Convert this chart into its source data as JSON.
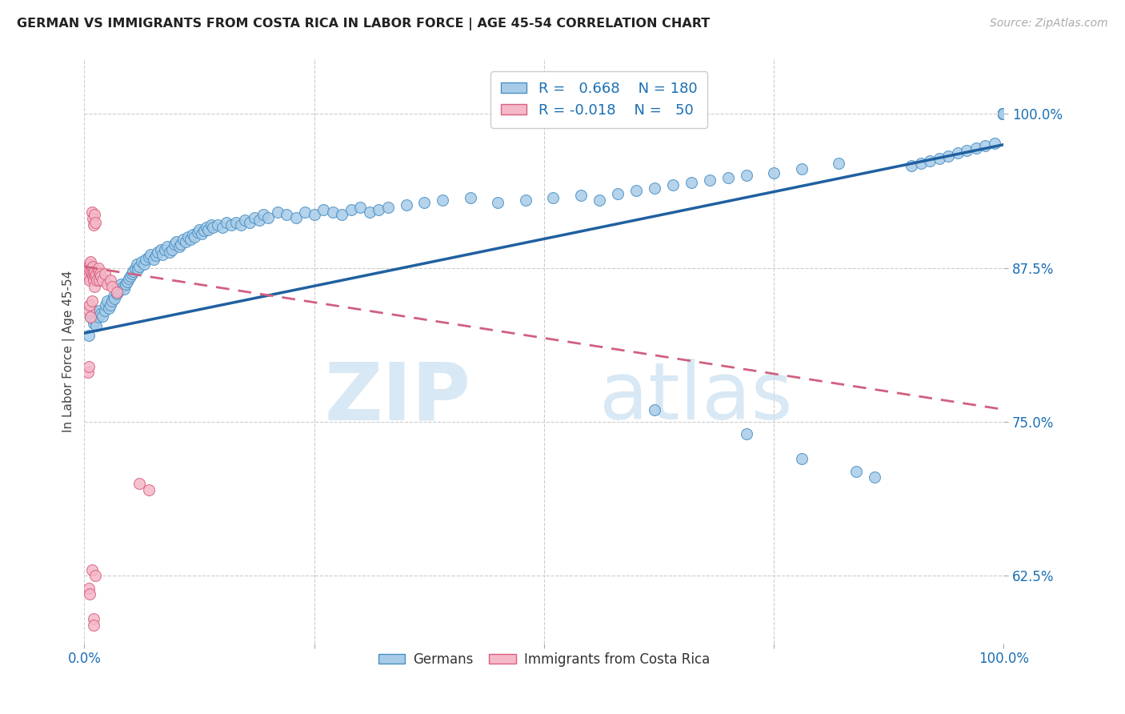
{
  "title": "GERMAN VS IMMIGRANTS FROM COSTA RICA IN LABOR FORCE | AGE 45-54 CORRELATION CHART",
  "source": "Source: ZipAtlas.com",
  "ylabel": "In Labor Force | Age 45-54",
  "xlim": [
    0.0,
    1.0
  ],
  "ylim": [
    0.57,
    1.045
  ],
  "x_ticks": [
    0.0,
    0.25,
    0.5,
    0.75,
    1.0
  ],
  "x_tick_labels": [
    "0.0%",
    "",
    "",
    "",
    "100.0%"
  ],
  "y_tick_labels": [
    "62.5%",
    "75.0%",
    "87.5%",
    "100.0%"
  ],
  "y_ticks": [
    0.625,
    0.75,
    0.875,
    1.0
  ],
  "blue_color": "#a8cce8",
  "blue_edge": "#4a90c4",
  "pink_color": "#f5b8c8",
  "pink_edge": "#d96080",
  "trendline_blue": "#2060a0",
  "trendline_pink": "#d06080",
  "legend_label1": "Germans",
  "legend_label2": "Immigrants from Costa Rica",
  "blue_scatter_x": [
    0.005,
    0.007,
    0.008,
    0.009,
    0.01,
    0.012,
    0.013,
    0.015,
    0.016,
    0.018,
    0.02,
    0.022,
    0.023,
    0.025,
    0.027,
    0.028,
    0.03,
    0.032,
    0.033,
    0.035,
    0.037,
    0.038,
    0.04,
    0.042,
    0.043,
    0.045,
    0.047,
    0.048,
    0.05,
    0.052,
    0.053,
    0.055,
    0.057,
    0.058,
    0.06,
    0.062,
    0.065,
    0.067,
    0.07,
    0.072,
    0.075,
    0.078,
    0.08,
    0.083,
    0.085,
    0.088,
    0.09,
    0.093,
    0.095,
    0.098,
    0.1,
    0.103,
    0.105,
    0.108,
    0.11,
    0.113,
    0.115,
    0.118,
    0.12,
    0.123,
    0.125,
    0.128,
    0.13,
    0.133,
    0.135,
    0.138,
    0.14,
    0.145,
    0.15,
    0.155,
    0.16,
    0.165,
    0.17,
    0.175,
    0.18,
    0.185,
    0.19,
    0.195,
    0.2,
    0.21,
    0.22,
    0.23,
    0.24,
    0.25,
    0.26,
    0.27,
    0.28,
    0.29,
    0.3,
    0.31,
    0.32,
    0.33,
    0.35,
    0.37,
    0.39,
    0.42,
    0.45,
    0.48,
    0.51,
    0.54,
    0.56,
    0.58,
    0.6,
    0.62,
    0.64,
    0.66,
    0.68,
    0.7,
    0.72,
    0.75,
    0.78,
    0.82,
    0.9,
    0.91,
    0.92,
    0.93,
    0.94,
    0.95,
    0.96,
    0.97,
    0.98,
    0.99,
    1.0,
    1.0,
    1.0,
    1.0,
    1.0,
    1.0,
    1.0,
    1.0,
    1.0,
    1.0,
    1.0,
    1.0,
    1.0,
    1.0,
    1.0,
    1.0,
    1.0,
    1.0,
    1.0,
    1.0,
    1.0,
    1.0,
    1.0,
    1.0,
    1.0,
    1.0,
    1.0,
    1.0,
    1.0,
    1.0,
    1.0,
    1.0,
    1.0,
    1.0,
    1.0,
    1.0,
    1.0,
    1.0,
    1.0,
    1.0,
    1.0,
    1.0,
    1.0,
    1.0,
    1.0,
    1.0,
    1.0,
    1.0,
    1.0,
    1.0,
    0.62,
    0.72,
    0.78,
    0.84,
    0.86
  ],
  "blue_scatter_y": [
    0.82,
    0.835,
    0.838,
    0.84,
    0.83,
    0.832,
    0.828,
    0.835,
    0.84,
    0.838,
    0.836,
    0.84,
    0.845,
    0.848,
    0.842,
    0.845,
    0.848,
    0.852,
    0.85,
    0.854,
    0.856,
    0.858,
    0.862,
    0.86,
    0.858,
    0.862,
    0.864,
    0.866,
    0.868,
    0.87,
    0.872,
    0.875,
    0.878,
    0.874,
    0.876,
    0.88,
    0.878,
    0.882,
    0.884,
    0.886,
    0.882,
    0.885,
    0.888,
    0.89,
    0.886,
    0.89,
    0.892,
    0.888,
    0.89,
    0.894,
    0.896,
    0.892,
    0.894,
    0.898,
    0.896,
    0.9,
    0.898,
    0.902,
    0.9,
    0.904,
    0.906,
    0.903,
    0.905,
    0.908,
    0.906,
    0.91,
    0.908,
    0.91,
    0.908,
    0.912,
    0.91,
    0.912,
    0.91,
    0.914,
    0.912,
    0.916,
    0.914,
    0.918,
    0.916,
    0.92,
    0.918,
    0.916,
    0.92,
    0.918,
    0.922,
    0.92,
    0.918,
    0.922,
    0.924,
    0.92,
    0.922,
    0.924,
    0.926,
    0.928,
    0.93,
    0.932,
    0.928,
    0.93,
    0.932,
    0.934,
    0.93,
    0.935,
    0.938,
    0.94,
    0.942,
    0.944,
    0.946,
    0.948,
    0.95,
    0.952,
    0.955,
    0.96,
    0.958,
    0.96,
    0.962,
    0.964,
    0.966,
    0.968,
    0.97,
    0.972,
    0.974,
    0.976,
    1.0,
    1.0,
    1.0,
    1.0,
    1.0,
    1.0,
    1.0,
    1.0,
    1.0,
    1.0,
    1.0,
    1.0,
    1.0,
    1.0,
    1.0,
    1.0,
    1.0,
    1.0,
    1.0,
    1.0,
    1.0,
    1.0,
    1.0,
    1.0,
    1.0,
    1.0,
    1.0,
    1.0,
    1.0,
    1.0,
    1.0,
    1.0,
    1.0,
    1.0,
    1.0,
    1.0,
    1.0,
    1.0,
    1.0,
    1.0,
    1.0,
    1.0,
    1.0,
    1.0,
    1.0,
    1.0,
    1.0,
    1.0,
    1.0,
    1.0,
    0.76,
    0.74,
    0.72,
    0.71,
    0.705
  ],
  "pink_scatter_x": [
    0.003,
    0.004,
    0.005,
    0.005,
    0.006,
    0.006,
    0.007,
    0.007,
    0.008,
    0.008,
    0.009,
    0.009,
    0.01,
    0.01,
    0.011,
    0.011,
    0.012,
    0.013,
    0.014,
    0.015,
    0.015,
    0.016,
    0.017,
    0.018,
    0.02,
    0.022,
    0.025,
    0.028,
    0.03,
    0.035,
    0.008,
    0.009,
    0.01,
    0.011,
    0.012,
    0.005,
    0.006,
    0.007,
    0.008,
    0.004,
    0.005,
    0.06,
    0.07,
    0.005,
    0.006,
    0.01,
    0.01,
    0.008,
    0.012
  ],
  "pink_scatter_y": [
    0.87,
    0.872,
    0.875,
    0.868,
    0.878,
    0.865,
    0.872,
    0.88,
    0.875,
    0.87,
    0.868,
    0.876,
    0.87,
    0.865,
    0.872,
    0.86,
    0.868,
    0.87,
    0.865,
    0.872,
    0.875,
    0.865,
    0.87,
    0.868,
    0.865,
    0.87,
    0.862,
    0.865,
    0.86,
    0.855,
    0.92,
    0.915,
    0.91,
    0.918,
    0.912,
    0.84,
    0.845,
    0.835,
    0.848,
    0.79,
    0.795,
    0.7,
    0.695,
    0.615,
    0.61,
    0.59,
    0.585,
    0.63,
    0.625
  ],
  "blue_trend_x": [
    0.0,
    1.0
  ],
  "blue_trend_y": [
    0.822,
    0.975
  ],
  "pink_trend_x": [
    0.0,
    1.0
  ],
  "pink_trend_y": [
    0.876,
    0.76
  ]
}
